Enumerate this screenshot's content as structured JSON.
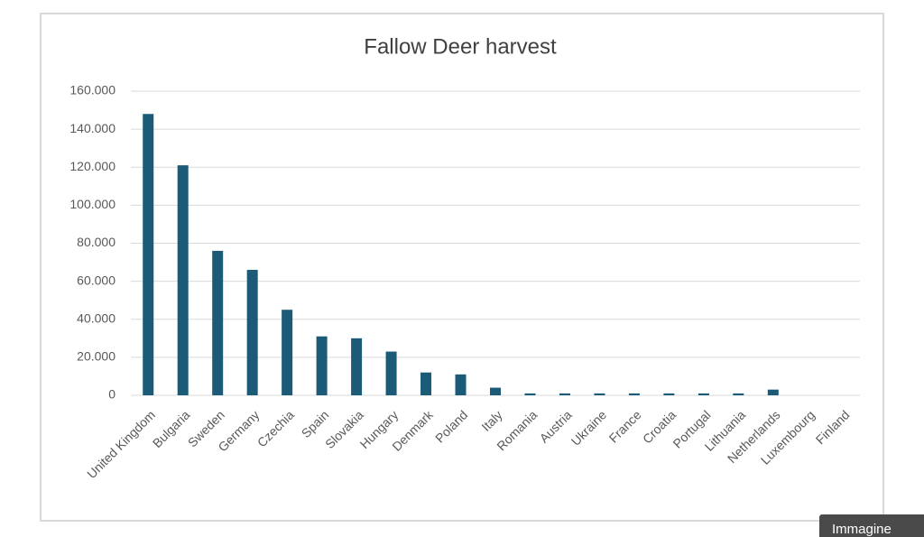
{
  "chart_data": {
    "type": "bar",
    "title": "Fallow Deer harvest",
    "categories": [
      "United Kingdom",
      "Bulgaria",
      "Sweden",
      "Germany",
      "Czechia",
      "Spain",
      "Slovakia",
      "Hungary",
      "Denmark",
      "Poland",
      "Italy",
      "Romania",
      "Austria",
      "Ukraine",
      "France",
      "Croatia",
      "Portugal",
      "Lithuania",
      "Netherlands",
      "Luxembourg",
      "Finland"
    ],
    "values": [
      148000,
      121000,
      76000,
      66000,
      45000,
      31000,
      30000,
      23000,
      12000,
      11000,
      4000,
      1000,
      1000,
      1000,
      1000,
      1000,
      1000,
      1000,
      3000,
      0,
      0
    ],
    "color": "#1b5b78",
    "ylim": [
      0,
      160000
    ],
    "yticks": [
      0,
      {
        "value": 20000,
        "label": "20.000"
      },
      {
        "value": 40000,
        "label": "40.000"
      },
      {
        "value": 60000,
        "label": "60.000"
      },
      {
        "value": 80000,
        "label": "80.000"
      },
      {
        "value": 100000,
        "label": "100.000"
      },
      {
        "value": 120000,
        "label": "120.000"
      },
      {
        "value": 140000,
        "label": "140.000"
      },
      {
        "value": 160000,
        "label": "160.000"
      }
    ],
    "grid": true
  },
  "overlay_label": "Immagine"
}
